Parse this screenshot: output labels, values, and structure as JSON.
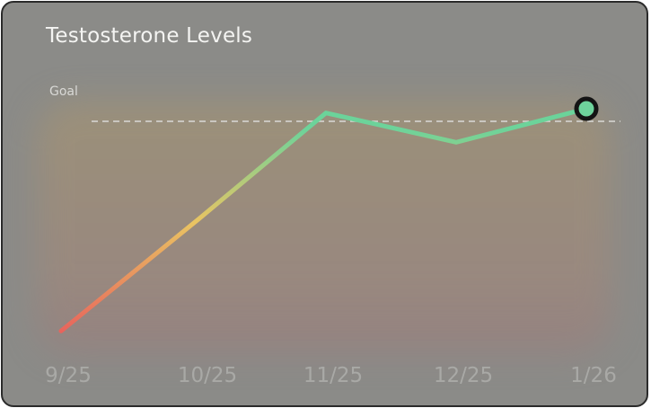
{
  "card": {
    "title": "Testosterone Levels",
    "goal_label": "Goal"
  },
  "chart_data": {
    "type": "line",
    "title": "Testosterone Levels",
    "categories": [
      "9/25",
      "10/25",
      "11/25",
      "12/25",
      "1/26"
    ],
    "series": [
      {
        "values": [
          1.0,
          28.0,
          53.0,
          46.0,
          54.0
        ]
      }
    ],
    "goal": 51,
    "ylim": [
      0,
      60
    ],
    "grid": false,
    "colors": {
      "line_start": "#e8615c",
      "line_mid": "#e9c462",
      "line_end": "#67d39a",
      "goal_line": "#d9d9d6",
      "marker_fill": "#6ed39c",
      "marker_ring": "#141414"
    }
  }
}
